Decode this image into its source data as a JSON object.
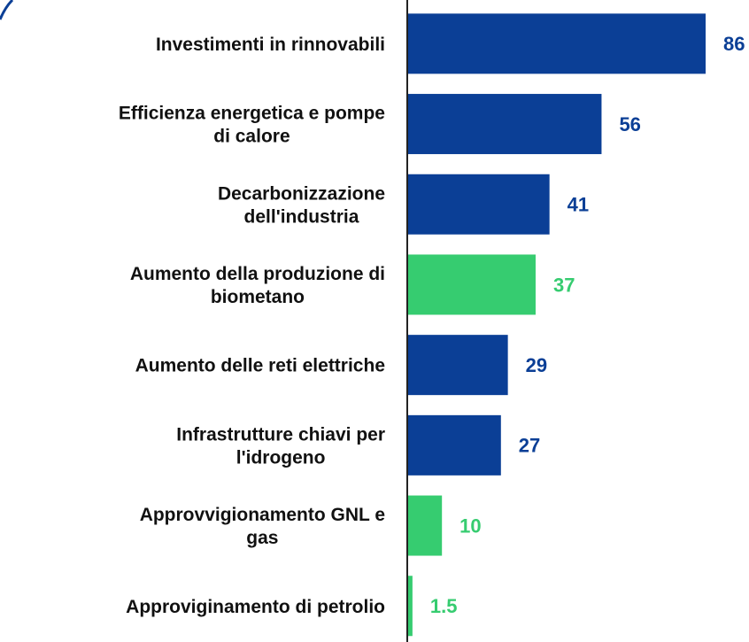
{
  "chart_data": {
    "type": "barh",
    "categories": [
      [
        "Investimenti in rinnovabili"
      ],
      [
        "Efficienza energetica e pompe",
        "di calore"
      ],
      [
        "Decarbonizzazione",
        "dell'industria"
      ],
      [
        "Aumento della produzione di",
        "biometano"
      ],
      [
        "Aumento delle reti elettriche"
      ],
      [
        "Infrastrutture chiavi per",
        "l'idrogeno"
      ],
      [
        "Approvvigionamento GNL e",
        "gas"
      ],
      [
        "Approviginamento di petrolio"
      ]
    ],
    "values": [
      86,
      56,
      41,
      37,
      29,
      27,
      10,
      1.5
    ],
    "colors": [
      "#0b3f96",
      "#0b3f96",
      "#0b3f96",
      "#36cc70",
      "#0b3f96",
      "#0b3f96",
      "#36cc70",
      "#36cc70"
    ]
  }
}
